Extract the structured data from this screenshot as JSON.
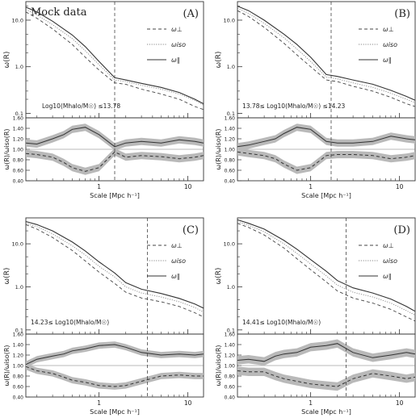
{
  "figure": {
    "corner_label": "Mock data"
  },
  "chart_data": [
    {
      "panel": "(A)",
      "type": "line",
      "annotation": "Log10(Mhalo/M☉) ≤13.78",
      "vline_x": 1.5,
      "top": {
        "ylabel": "ω(R)",
        "yscale": "log",
        "ylim": [
          0.08,
          25
        ],
        "yticks": [
          "0.1",
          "1.0",
          "10.0"
        ],
        "legend": [
          "ω⊥",
          "ωiso",
          "ω∥"
        ],
        "x": [
          0.15,
          0.2,
          0.3,
          0.5,
          0.7,
          1.0,
          1.5,
          2.0,
          3.0,
          5.0,
          8.0,
          12.0,
          15.0
        ],
        "series": [
          {
            "name": "ω⊥",
            "style": "dashed",
            "values": [
              15,
              11,
              6.5,
              3.0,
              1.6,
              0.85,
              0.45,
              0.42,
              0.33,
              0.26,
              0.2,
              0.14,
              0.12
            ]
          },
          {
            "name": "ωiso",
            "style": "dotted",
            "values": [
              17,
              13,
              8.0,
              4.0,
              2.2,
              1.1,
              0.52,
              0.48,
              0.4,
              0.33,
              0.26,
              0.19,
              0.15
            ]
          },
          {
            "name": "ω∥",
            "style": "solid",
            "values": [
              19,
              15,
              9.5,
              4.8,
              2.7,
              1.3,
              0.58,
              0.52,
              0.44,
              0.36,
              0.28,
              0.2,
              0.16
            ]
          }
        ]
      },
      "bottom": {
        "ylabel": "ω(R)/ωiso(R)",
        "ylim": [
          0.4,
          1.6
        ],
        "yticks": [
          "0.40",
          "0.60",
          "0.80",
          "1.00",
          "1.20",
          "1.40",
          "1.60"
        ],
        "x": [
          0.15,
          0.2,
          0.3,
          0.4,
          0.5,
          0.7,
          1.0,
          1.5,
          2.0,
          3.0,
          5.0,
          8.0,
          12.0,
          15.0
        ],
        "upper": [
          1.12,
          1.1,
          1.2,
          1.28,
          1.38,
          1.42,
          1.28,
          1.05,
          1.12,
          1.15,
          1.12,
          1.18,
          1.15,
          1.12
        ],
        "lower": [
          0.92,
          0.9,
          0.85,
          0.75,
          0.65,
          0.58,
          0.65,
          0.95,
          0.85,
          0.88,
          0.86,
          0.82,
          0.85,
          0.88
        ],
        "band": 0.07
      },
      "xlabel": "Scale [Mpc h⁻¹]",
      "xticks": [
        "1",
        "10"
      ]
    },
    {
      "panel": "(B)",
      "type": "line",
      "annotation": "13.78≤ Log10(Mhalo/M☉) ≤14.23",
      "vline_x": 1.7,
      "top": {
        "ylabel": "ω(R)",
        "yscale": "log",
        "ylim": [
          0.08,
          25
        ],
        "yticks": [
          "0.1",
          "1.0",
          "10.0"
        ],
        "legend": [
          "ω⊥",
          "ωiso",
          "ω∥"
        ],
        "x": [
          0.15,
          0.2,
          0.3,
          0.5,
          0.7,
          1.0,
          1.5,
          2.0,
          3.0,
          5.0,
          8.0,
          12.0,
          15.0
        ],
        "series": [
          {
            "name": "ω⊥",
            "style": "dashed",
            "values": [
              16,
              12,
              7.0,
              3.2,
              1.8,
              1.0,
              0.52,
              0.48,
              0.38,
              0.3,
              0.22,
              0.16,
              0.14
            ]
          },
          {
            "name": "ωiso",
            "style": "dotted",
            "values": [
              18,
              14,
              8.5,
              4.2,
              2.4,
              1.3,
              0.6,
              0.55,
              0.45,
              0.36,
              0.27,
              0.2,
              0.17
            ]
          },
          {
            "name": "ω∥",
            "style": "solid",
            "values": [
              20,
              16,
              10,
              5.0,
              3.0,
              1.6,
              0.68,
              0.62,
              0.52,
              0.42,
              0.31,
              0.23,
              0.19
            ]
          }
        ]
      },
      "bottom": {
        "ylabel": "ω(R)/ωiso(R)",
        "ylim": [
          0.4,
          1.6
        ],
        "yticks": [
          "0.40",
          "0.60",
          "0.80",
          "1.00",
          "1.20",
          "1.40",
          "1.60"
        ],
        "x": [
          0.15,
          0.2,
          0.3,
          0.4,
          0.5,
          0.7,
          1.0,
          1.5,
          2.0,
          3.0,
          5.0,
          8.0,
          12.0,
          15.0
        ],
        "upper": [
          1.05,
          1.08,
          1.15,
          1.2,
          1.3,
          1.42,
          1.38,
          1.15,
          1.12,
          1.12,
          1.15,
          1.25,
          1.2,
          1.18
        ],
        "lower": [
          0.95,
          0.92,
          0.88,
          0.82,
          0.72,
          0.6,
          0.65,
          0.88,
          0.9,
          0.9,
          0.88,
          0.82,
          0.85,
          0.88
        ],
        "band": 0.07
      },
      "xlabel": "Scale [Mpc h⁻¹]",
      "xticks": [
        "1",
        "10"
      ]
    },
    {
      "panel": "(C)",
      "type": "line",
      "annotation": "14.23≤ Log10(Mhalo/M☉)",
      "vline_x": 3.5,
      "top": {
        "ylabel": "ω(R)",
        "yscale": "log",
        "ylim": [
          0.08,
          40
        ],
        "yticks": [
          "0.1",
          "1.0",
          "10.0"
        ],
        "legend": [
          "ω⊥",
          "ωiso",
          "ω∥"
        ],
        "x": [
          0.15,
          0.2,
          0.3,
          0.5,
          0.7,
          1.0,
          1.5,
          2.0,
          3.0,
          5.0,
          8.0,
          12.0,
          15.0
        ],
        "series": [
          {
            "name": "ω⊥",
            "style": "dashed",
            "values": [
              28,
              22,
              14,
              7.0,
              4.0,
              2.2,
              1.2,
              0.75,
              0.55,
              0.45,
              0.35,
              0.25,
              0.2
            ]
          },
          {
            "name": "ωiso",
            "style": "dotted",
            "values": [
              30,
              25,
              17,
              9.0,
              5.5,
              3.0,
              1.7,
              1.0,
              0.72,
              0.58,
              0.45,
              0.33,
              0.26
            ]
          },
          {
            "name": "ω∥",
            "style": "solid",
            "values": [
              33,
              28,
              20,
              11,
              6.8,
              3.8,
              2.1,
              1.25,
              0.88,
              0.7,
              0.54,
              0.4,
              0.32
            ]
          }
        ]
      },
      "bottom": {
        "ylabel": "ω(R)/ωiso(R)",
        "ylim": [
          0.4,
          1.6
        ],
        "yticks": [
          "0.40",
          "0.60",
          "0.80",
          "1.00",
          "1.20",
          "1.40",
          "1.60"
        ],
        "x": [
          0.15,
          0.2,
          0.3,
          0.4,
          0.5,
          0.7,
          1.0,
          1.5,
          2.0,
          3.0,
          5.0,
          8.0,
          12.0,
          15.0
        ],
        "upper": [
          1.02,
          1.12,
          1.18,
          1.22,
          1.28,
          1.32,
          1.38,
          1.4,
          1.35,
          1.25,
          1.2,
          1.22,
          1.2,
          1.22
        ],
        "lower": [
          0.98,
          0.9,
          0.85,
          0.78,
          0.72,
          0.68,
          0.62,
          0.6,
          0.62,
          0.7,
          0.8,
          0.82,
          0.8,
          0.8
        ],
        "band": 0.06
      },
      "xlabel": "Scale [Mpc h⁻¹]",
      "xticks": [
        "1",
        "10"
      ]
    },
    {
      "panel": "(D)",
      "type": "line",
      "annotation": "14.41≤ Log10(Mhalo/M☉)",
      "vline_x": 2.5,
      "top": {
        "ylabel": "ω(R)",
        "yscale": "log",
        "ylim": [
          0.08,
          40
        ],
        "yticks": [
          "0.1",
          "1.0",
          "10.0"
        ],
        "legend": [
          "ω⊥",
          "ωiso",
          "ω∥"
        ],
        "x": [
          0.15,
          0.2,
          0.3,
          0.5,
          0.7,
          1.0,
          1.5,
          2.0,
          3.0,
          5.0,
          8.0,
          12.0,
          15.0
        ],
        "series": [
          {
            "name": "ω⊥",
            "style": "dashed",
            "values": [
              30,
              24,
              16,
              8.0,
              4.5,
              2.5,
              1.3,
              0.8,
              0.55,
              0.42,
              0.3,
              0.2,
              0.16
            ]
          },
          {
            "name": "ωiso",
            "style": "dotted",
            "values": [
              33,
              27,
              19,
              10,
              6.0,
              3.4,
              1.8,
              1.1,
              0.75,
              0.58,
              0.42,
              0.28,
              0.22
            ]
          },
          {
            "name": "ω∥",
            "style": "solid",
            "values": [
              36,
              30,
              22,
              12,
              7.5,
              4.3,
              2.3,
              1.4,
              0.95,
              0.72,
              0.52,
              0.35,
              0.27
            ]
          }
        ]
      },
      "bottom": {
        "ylabel": "ω(R)/ωiso(R)",
        "ylim": [
          0.4,
          1.6
        ],
        "yticks": [
          "0.40",
          "0.60",
          "0.80",
          "1.00",
          "1.20",
          "1.40",
          "1.60"
        ],
        "x": [
          0.15,
          0.2,
          0.3,
          0.4,
          0.5,
          0.7,
          1.0,
          1.5,
          2.0,
          3.0,
          5.0,
          8.0,
          12.0,
          15.0
        ],
        "upper": [
          1.1,
          1.12,
          1.08,
          1.18,
          1.22,
          1.25,
          1.35,
          1.38,
          1.42,
          1.25,
          1.15,
          1.2,
          1.25,
          1.22
        ],
        "lower": [
          0.9,
          0.88,
          0.88,
          0.8,
          0.75,
          0.7,
          0.65,
          0.62,
          0.6,
          0.75,
          0.85,
          0.8,
          0.75,
          0.78
        ],
        "band": 0.08
      },
      "xlabel": "Scale [Mpc h⁻¹]",
      "xticks": [
        "1",
        "10"
      ]
    }
  ]
}
